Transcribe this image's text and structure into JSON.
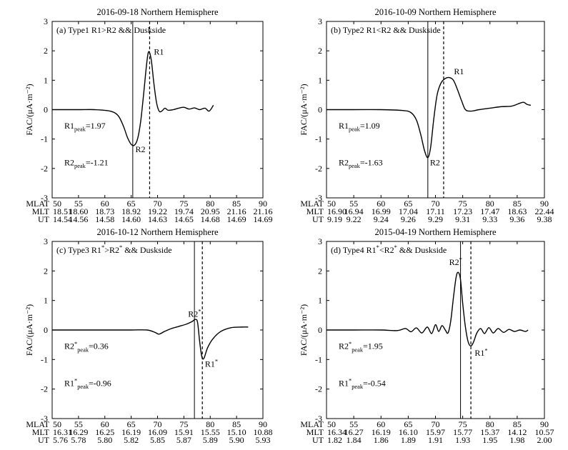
{
  "chart_data": [
    {
      "type": "line",
      "title": "2016-09-18  Northern Hemisphere",
      "label": "(a) Type1  R1>R2 && Duskside",
      "ylabel": "FAC/(μA·m⁻²)",
      "xlim": [
        50,
        90
      ],
      "ylim": [
        -3,
        3
      ],
      "yticks": [
        -3,
        -2,
        -1,
        0,
        1,
        2,
        3
      ],
      "mlat_ticks": [
        "50",
        "55",
        "60",
        "65",
        "70",
        "75",
        "80",
        "85",
        "90"
      ],
      "mlt_ticks": [
        "18.51",
        "18.60",
        "18.73",
        "18.92",
        "19.22",
        "19.74",
        "20.95",
        "21.16",
        "21.16"
      ],
      "ut_ticks": [
        "14.54",
        "14.56",
        "14.58",
        "14.60",
        "14.63",
        "14.65",
        "14.68",
        "14.69",
        "14.69"
      ],
      "solid_line_mlat": 65.3,
      "dashed_line_mlat": 68.5,
      "series": [
        {
          "name": "FAC",
          "x": [
            50,
            55,
            58,
            61,
            62.5,
            63.5,
            64.3,
            65.0,
            65.6,
            66.2,
            66.8,
            67.4,
            67.9,
            68.3,
            68.8,
            69.3,
            69.8,
            70.3,
            70.8,
            71.4,
            72,
            73,
            74,
            75,
            76,
            77,
            78,
            79,
            79.8,
            80.6
          ],
          "y": [
            0,
            0,
            0,
            -0.05,
            -0.2,
            -0.55,
            -0.95,
            -1.18,
            -1.21,
            -1.0,
            -0.4,
            0.6,
            1.5,
            1.97,
            1.7,
            0.9,
            0.25,
            -0.05,
            -0.05,
            0.05,
            -0.02,
            0.0,
            0.05,
            0.08,
            0.02,
            0.06,
            0.0,
            0.05,
            -0.05,
            0.15
          ]
        }
      ],
      "annotations": [
        {
          "text": "R1",
          "x": 69.3,
          "y": 1.97
        },
        {
          "text": "R2",
          "x": 65.8,
          "y": -1.35
        }
      ],
      "peaks": {
        "r1_label": "R1",
        "r1_value": "=1.97",
        "r2_label": "R2",
        "r2_value": "=-1.21",
        "sub": "peak"
      }
    },
    {
      "type": "line",
      "title": "2016-10-09  Northern Hemisphere",
      "label": "(b) Type2  R1<R2 && Duskside",
      "ylabel": "FAC/(μA·m⁻²)",
      "xlim": [
        50,
        90
      ],
      "ylim": [
        -3,
        3
      ],
      "yticks": [
        -3,
        -2,
        -1,
        0,
        1,
        2,
        3
      ],
      "mlat_ticks": [
        "50",
        "55",
        "60",
        "65",
        "70",
        "75",
        "80",
        "85",
        "90"
      ],
      "mlt_ticks": [
        "16.90",
        "16.94",
        "16.99",
        "17.04",
        "17.11",
        "17.23",
        "17.47",
        "18.63",
        "22.44"
      ],
      "ut_ticks": [
        "9.19",
        "9.22",
        "9.24",
        "9.26",
        "9.29",
        "9.31",
        "9.33",
        "9.36",
        "9.38"
      ],
      "solid_line_mlat": 68.6,
      "dashed_line_mlat": 71.5,
      "series": [
        {
          "name": "FAC",
          "x": [
            50,
            55,
            60,
            64,
            65.5,
            66.5,
            67.3,
            68.0,
            68.6,
            69.1,
            69.7,
            70.3,
            71.0,
            71.8,
            72.6,
            73.3,
            74.0,
            74.8,
            75.5,
            76.5,
            78,
            80,
            82,
            84,
            85.5,
            86.2,
            86.8,
            87.5
          ],
          "y": [
            0,
            0,
            0,
            -0.03,
            -0.1,
            -0.35,
            -0.85,
            -1.4,
            -1.63,
            -1.3,
            -0.3,
            0.5,
            0.9,
            1.06,
            1.09,
            1.0,
            0.7,
            0.3,
            0.0,
            -0.05,
            0.0,
            0.05,
            0.1,
            0.12,
            0.22,
            0.25,
            0.18,
            0.15
          ]
        }
      ],
      "annotations": [
        {
          "text": "R1",
          "x": 73.4,
          "y": 1.3
        },
        {
          "text": "R2",
          "x": 69.0,
          "y": -1.8
        }
      ],
      "peaks": {
        "r1_label": "R1",
        "r1_value": "=1.09",
        "r2_label": "R2",
        "r2_value": "=-1.63",
        "sub": "peak"
      }
    },
    {
      "type": "line",
      "title": "2016-10-12  Northern Hemisphere",
      "label": "(c) Type3  R1*>R2* && Duskside",
      "ylabel": "FAC/(μA·m⁻²)",
      "xlim": [
        50,
        90
      ],
      "ylim": [
        -3,
        3
      ],
      "yticks": [
        -3,
        -2,
        -1,
        0,
        1,
        2,
        3
      ],
      "mlat_ticks": [
        "50",
        "55",
        "60",
        "65",
        "70",
        "75",
        "80",
        "85",
        "90"
      ],
      "mlt_ticks": [
        "16.31",
        "16.29",
        "16.25",
        "16.19",
        "16.09",
        "15.91",
        "15.55",
        "15.10",
        "10.88"
      ],
      "ut_ticks": [
        "5.76",
        "5.78",
        "5.80",
        "5.82",
        "5.85",
        "5.87",
        "5.89",
        "5.90",
        "5.93"
      ],
      "solid_line_mlat": 77.0,
      "dashed_line_mlat": 78.5,
      "series": [
        {
          "name": "FAC",
          "x": [
            50,
            55,
            60,
            65,
            68,
            69.5,
            70.3,
            71.3,
            72.5,
            74,
            75.5,
            76.5,
            77.2,
            77.6,
            78.0,
            78.4,
            78.8,
            79.5,
            80.5,
            82,
            84,
            86,
            87.2
          ],
          "y": [
            0,
            0,
            0,
            0,
            0,
            -0.08,
            -0.14,
            -0.05,
            0.04,
            0.12,
            0.2,
            0.28,
            0.36,
            0.25,
            -0.4,
            -0.9,
            -0.96,
            -0.6,
            -0.3,
            -0.05,
            0.08,
            0.1,
            0.1
          ]
        }
      ],
      "annotations": [
        {
          "text": "R2*",
          "x": 75.8,
          "y": 0.55
        },
        {
          "text": "R1*",
          "x": 79.0,
          "y": -1.15
        }
      ],
      "peaks": {
        "r1_label": "R2*",
        "r1_value": "=0.36",
        "r2_label": "R1*",
        "r2_value": "=-0.96",
        "sub": "peak"
      }
    },
    {
      "type": "line",
      "title": "2015-04-19  Northern Hemisphere",
      "label": "(d) Type4  R1*<R2* && Duskside",
      "ylabel": "FAC/(μA·m⁻²)",
      "xlim": [
        50,
        90
      ],
      "ylim": [
        -3,
        3
      ],
      "yticks": [
        -3,
        -2,
        -1,
        0,
        1,
        2,
        3
      ],
      "mlat_ticks": [
        "50",
        "55",
        "60",
        "65",
        "70",
        "75",
        "80",
        "85",
        "90"
      ],
      "mlt_ticks": [
        "16.34",
        "16.27",
        "16.19",
        "16.10",
        "15.97",
        "15.77",
        "15.37",
        "14.12",
        "10.57"
      ],
      "ut_ticks": [
        "1.82",
        "1.84",
        "1.86",
        "1.89",
        "1.91",
        "1.93",
        "1.95",
        "1.98",
        "2.00"
      ],
      "solid_line_mlat": 74.6,
      "dashed_line_mlat": 76.5,
      "series": [
        {
          "name": "FAC",
          "x": [
            50,
            55,
            60,
            63,
            64.5,
            65.5,
            66.5,
            67.5,
            68.5,
            69.3,
            70.0,
            70.6,
            71.2,
            71.8,
            72.3,
            72.8,
            73.3,
            73.8,
            74.2,
            74.6,
            75.0,
            75.5,
            76.0,
            76.5,
            77.0,
            77.6,
            78.3,
            79.0,
            79.8,
            80.6,
            81.5,
            82.5,
            83.5,
            84.5,
            85.5,
            86.5,
            87
          ],
          "y": [
            0,
            0,
            0,
            -0.02,
            0.05,
            -0.06,
            0.07,
            -0.1,
            0.1,
            -0.12,
            0.18,
            -0.05,
            0.15,
            0.0,
            -0.1,
            0.3,
            1.1,
            1.8,
            1.95,
            1.7,
            0.9,
            0.1,
            -0.4,
            -0.54,
            -0.4,
            -0.1,
            0.05,
            -0.12,
            0.08,
            -0.1,
            0.05,
            -0.08,
            0.02,
            -0.05,
            0.0,
            -0.05,
            0.0
          ]
        }
      ],
      "annotations": [
        {
          "text": "R2*",
          "x": 72.5,
          "y": 2.3
        },
        {
          "text": "R1*",
          "x": 77.2,
          "y": -0.78
        }
      ],
      "peaks": {
        "r1_label": "R2*",
        "r1_value": "=1.95",
        "r2_label": "R1*",
        "r2_value": "=-0.54",
        "sub": "peak"
      }
    }
  ],
  "axis_row_labels": {
    "mlat": "MLAT",
    "mlt": "MLT",
    "ut": "UT"
  }
}
